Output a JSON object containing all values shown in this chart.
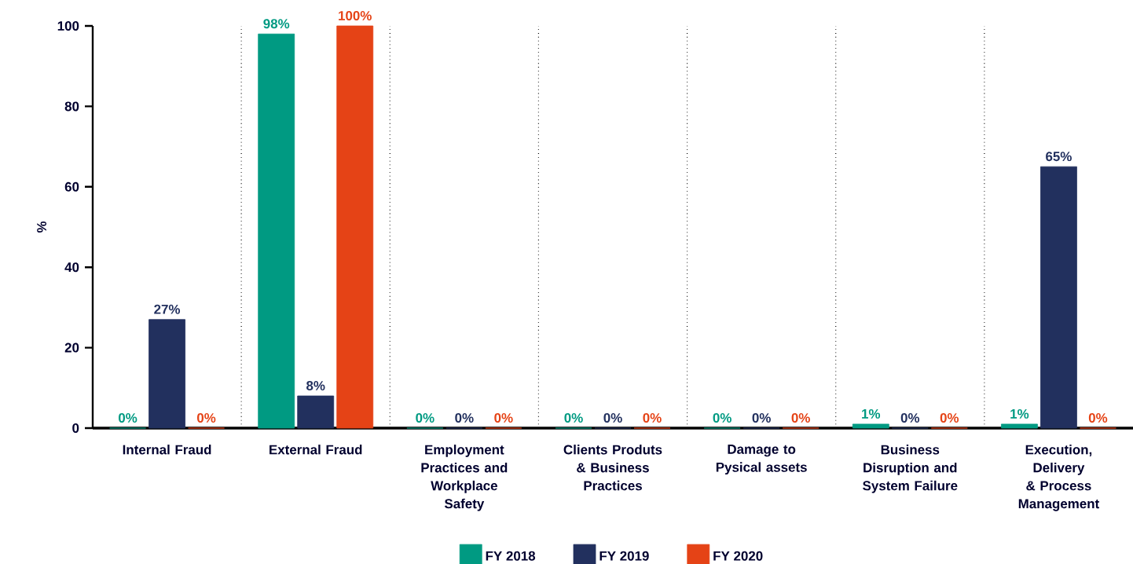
{
  "chart_data": {
    "type": "bar",
    "ylabel": "%",
    "categories": [
      "Internal Fraud",
      "External Fraud",
      "Employment Practices and Workplace Safety",
      "Clients Produts & Business Practices",
      "Damage to Pysical assets",
      "Business Disruption and System Failure",
      "Execution, Delivery & Process Management"
    ],
    "series": [
      {
        "name": "FY 2018",
        "color": "#009a82",
        "values": [
          0,
          98,
          0,
          0,
          0,
          1,
          1
        ],
        "value_labels": [
          "0%",
          "98%",
          "0%",
          "0%",
          "0%",
          "1%",
          "1%"
        ]
      },
      {
        "name": "FY 2019",
        "color": "#22305e",
        "values": [
          27,
          8,
          0,
          0,
          0,
          0,
          65
        ],
        "value_labels": [
          "27%",
          "8%",
          "0%",
          "0%",
          "0%",
          "0%",
          "65%"
        ]
      },
      {
        "name": "FY 2020",
        "color": "#e54316",
        "values": [
          0,
          100,
          0,
          0,
          0,
          0,
          0
        ],
        "value_labels": [
          "0%",
          "100%",
          "0%",
          "0%",
          "0%",
          "0%",
          "0%"
        ]
      }
    ],
    "ylim": [
      0,
      100
    ],
    "yticks": [
      0,
      20,
      40,
      60,
      80,
      100
    ],
    "grid": "x",
    "legend": "bottom"
  }
}
